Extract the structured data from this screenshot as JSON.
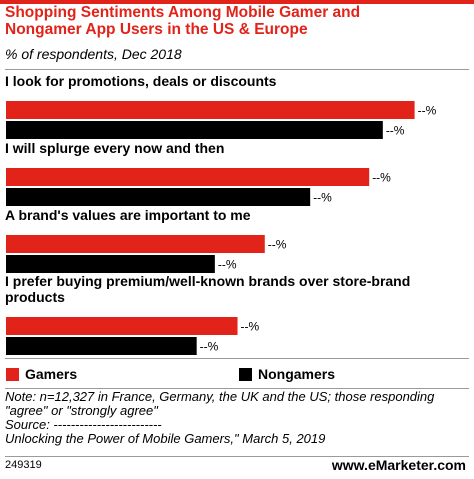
{
  "title_lines": [
    "Shopping Sentiments Among Mobile Gamer and",
    "Nongamer App Users in the US & Europe"
  ],
  "subtitle": "% of respondents, Dec 2018",
  "colors": {
    "gamers": "#e2231a",
    "nongamers": "#000000",
    "title": "#e2231a"
  },
  "chart_data": {
    "type": "bar",
    "orientation": "horizontal",
    "categories": [
      [
        "I look for promotions, deals or discounts"
      ],
      [
        "I will splurge every now and then"
      ],
      [
        "A brand's values are important to me"
      ],
      [
        "I prefer buying premium/well-known brands over store-brand",
        "products"
      ]
    ],
    "series": [
      {
        "name": "Gamers",
        "values": [
          90,
          80,
          57,
          51
        ],
        "labels": [
          "--%",
          "--%",
          "--%",
          "--%"
        ]
      },
      {
        "name": "Nongamers",
        "values": [
          83,
          67,
          46,
          42
        ],
        "labels": [
          "--%",
          "--%",
          "--%",
          "--%"
        ]
      }
    ],
    "xlim": [
      0,
      100
    ],
    "legend": "bottom-left"
  },
  "legend": {
    "gamers": "Gamers",
    "nongamers": "Nongamers"
  },
  "note_lines": [
    "Note: n=12,327 in France, Germany, the UK and the US; those responding",
    "\"agree\" or \"strongly agree\"",
    "Source: -------------------------",
    "Unlocking the Power of Mobile Gamers,\" March 5, 2019"
  ],
  "chart_id": "249319",
  "brand": "www.eMarketer.com"
}
